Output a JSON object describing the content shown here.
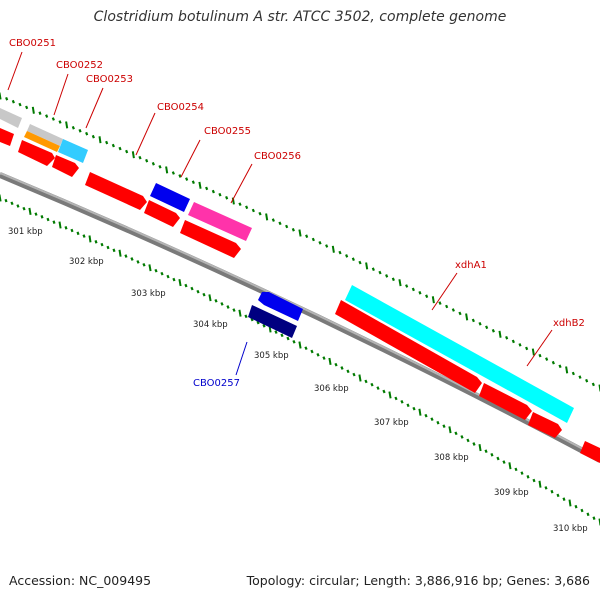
{
  "title": "Clostridium botulinum A str. ATCC 3502, complete genome",
  "footer": {
    "accession": "Accession: NC_009495",
    "topology": "Topology: circular; Length: 3,886,916 bp; Genes: 3,686"
  },
  "colors": {
    "backbone": "#808080",
    "tick": "#007a00",
    "label_red": "#cc0000",
    "label_blue": "#0000cc",
    "cds_red": "#ff0000",
    "gene_gray": "#c8c8c8",
    "gene_orange": "#ff9900",
    "gene_skyblue": "#33ccff",
    "gene_blue": "#0000ee",
    "gene_navy": "#000080",
    "gene_pink": "#ff33aa",
    "gene_cyan": "#00ffff"
  },
  "kbp_labels": [
    "301 kbp",
    "302 kbp",
    "303 kbp",
    "304 kbp",
    "305 kbp",
    "306 kbp",
    "307 kbp",
    "308 kbp",
    "309 kbp",
    "310 kbp"
  ],
  "gene_labels": [
    "CBO0251",
    "CBO0252",
    "CBO0253",
    "CBO0254",
    "CBO0255",
    "CBO0256",
    "xdhA1",
    "xdhB2",
    "CBO0257"
  ]
}
